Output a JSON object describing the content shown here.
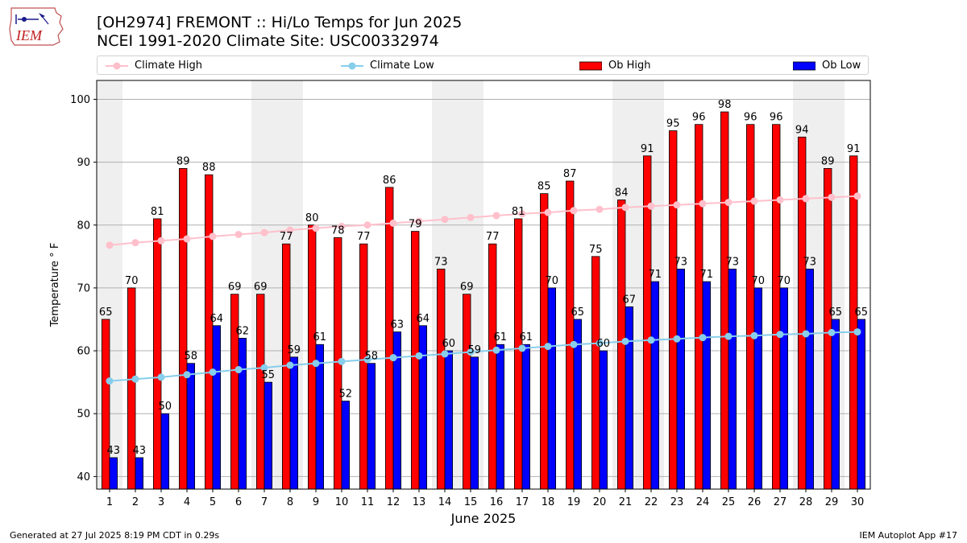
{
  "header": {
    "title": "[OH2974] FREMONT :: Hi/Lo Temps for Jun 2025",
    "subtitle": "NCEI 1991-2020 Climate Site: USC00332974"
  },
  "logo": {
    "text": "IEM",
    "icon": "iem-iowa-logo-icon"
  },
  "footer": {
    "left": "Generated at 27 Jul 2025 8:19 PM CDT in 0.29s",
    "right": "IEM Autoplot App #17"
  },
  "chart_data": {
    "type": "bar",
    "title": "[OH2974] FREMONT :: Hi/Lo Temps for Jun 2025",
    "xlabel": "June 2025",
    "ylabel": "Temperature ° F",
    "ylim": [
      38,
      103
    ],
    "yticks": [
      40,
      50,
      60,
      70,
      80,
      90,
      100
    ],
    "grid": true,
    "legend_position": "top",
    "categories": [
      "1",
      "2",
      "3",
      "4",
      "5",
      "6",
      "7",
      "8",
      "9",
      "10",
      "11",
      "12",
      "13",
      "14",
      "15",
      "16",
      "17",
      "18",
      "19",
      "20",
      "21",
      "22",
      "23",
      "24",
      "25",
      "26",
      "27",
      "28",
      "29",
      "30"
    ],
    "series": [
      {
        "name": "Climate High",
        "kind": "line",
        "color": "#ffc0cb",
        "values": [
          76.8,
          77.2,
          77.5,
          77.8,
          78.2,
          78.5,
          78.8,
          79.2,
          79.5,
          79.8,
          80.0,
          80.3,
          80.6,
          80.9,
          81.2,
          81.5,
          81.8,
          82.0,
          82.3,
          82.5,
          82.8,
          83.0,
          83.2,
          83.4,
          83.6,
          83.8,
          84.0,
          84.2,
          84.4,
          84.6
        ]
      },
      {
        "name": "Climate Low",
        "kind": "line",
        "color": "#87ceeb",
        "values": [
          55.2,
          55.5,
          55.8,
          56.2,
          56.6,
          57.0,
          57.3,
          57.7,
          58.0,
          58.3,
          58.6,
          58.9,
          59.2,
          59.5,
          59.8,
          60.1,
          60.4,
          60.7,
          61.0,
          61.2,
          61.5,
          61.7,
          61.9,
          62.1,
          62.3,
          62.4,
          62.6,
          62.7,
          62.9,
          63.0
        ]
      },
      {
        "name": "Ob High",
        "kind": "bar",
        "color": "#ff0000",
        "values": [
          65,
          70,
          81,
          89,
          88,
          69,
          69,
          77,
          80,
          78,
          77,
          86,
          79,
          73,
          69,
          77,
          81,
          85,
          87,
          75,
          84,
          91,
          95,
          96,
          98,
          96,
          96,
          94,
          89,
          91
        ]
      },
      {
        "name": "Ob Low",
        "kind": "bar",
        "color": "#0000ff",
        "values": [
          43,
          43,
          50,
          58,
          64,
          62,
          55,
          59,
          61,
          52,
          58,
          63,
          64,
          60,
          59,
          61,
          61,
          70,
          65,
          60,
          67,
          71,
          73,
          71,
          73,
          70,
          70,
          73,
          65,
          65
        ]
      }
    ],
    "shaded_weekends": [
      1,
      7,
      8,
      14,
      15,
      21,
      22,
      28,
      29
    ],
    "shade_color": "#efefef"
  }
}
